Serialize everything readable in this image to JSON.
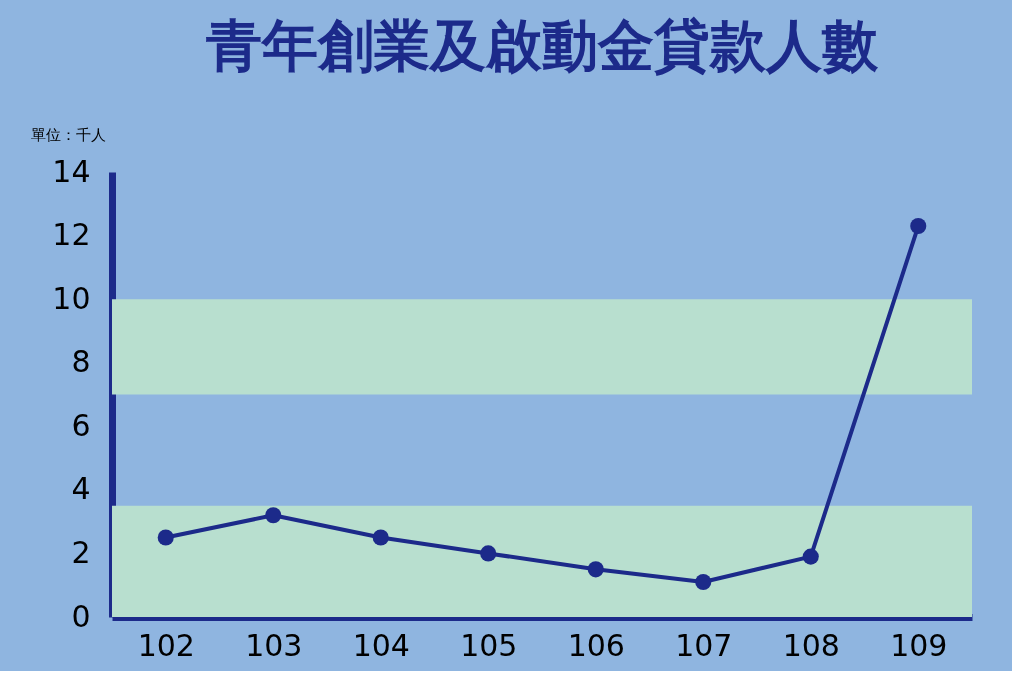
{
  "chart_data": {
    "type": "line",
    "title": "青年創業及啟動金貸款人數",
    "ylabel": "單位：千人",
    "categories": [
      "102",
      "103",
      "104",
      "105",
      "106",
      "107",
      "108",
      "109"
    ],
    "series": [
      {
        "color": "#1c2a8a",
        "values": [
          2.5,
          3.2,
          2.5,
          2.0,
          1.5,
          1.1,
          1.9,
          12.3
        ]
      }
    ],
    "ylim": [
      0,
      14
    ],
    "yticks": [
      0,
      2,
      4,
      6,
      8,
      10,
      12,
      14
    ],
    "marker": "circle",
    "bands": [
      {
        "axis": "y",
        "from": 0,
        "to": 3.5,
        "color": "#b8dfcf"
      },
      {
        "axis": "y",
        "from": 7,
        "to": 10,
        "color": "#b8dfcf"
      }
    ]
  }
}
